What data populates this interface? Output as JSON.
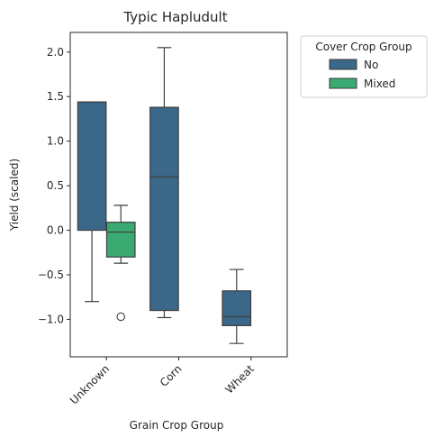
{
  "chart_data": {
    "type": "box",
    "title": "Typic Hapludult",
    "xlabel": "Grain Crop Group",
    "ylabel": "Yield (scaled)",
    "categories": [
      "Unknown",
      "Corn",
      "Wheat"
    ],
    "ylim": [
      -1.42,
      2.22
    ],
    "yticks": [
      "2.0",
      "1.5",
      "1.0",
      "0.5",
      "0.0",
      "−0.5",
      "−1.0"
    ],
    "ytick_values": [
      2.0,
      1.5,
      1.0,
      0.5,
      0.0,
      -0.5,
      -1.0
    ],
    "legend": {
      "title": "Cover Crop Group",
      "placement": "outside-top-right",
      "entries": [
        {
          "name": "No",
          "color": "#3b6788"
        },
        {
          "name": "Mixed",
          "color": "#3aaa72"
        }
      ]
    },
    "boxes": [
      {
        "category": "Unknown",
        "series": "No",
        "whisker_low": -0.8,
        "q1": 0.0,
        "median": 1.44,
        "q3": 1.44,
        "whisker_high": 1.44,
        "outliers": []
      },
      {
        "category": "Unknown",
        "series": "Mixed",
        "whisker_low": -0.37,
        "q1": -0.3,
        "median": -0.02,
        "q3": 0.09,
        "whisker_high": 0.28,
        "outliers": [
          -0.97
        ]
      },
      {
        "category": "Corn",
        "series": "No",
        "whisker_low": -0.98,
        "q1": -0.9,
        "median": 0.6,
        "q3": 1.38,
        "whisker_high": 2.05,
        "outliers": []
      },
      {
        "category": "Wheat",
        "series": "No",
        "whisker_low": -1.27,
        "q1": -1.07,
        "median": -0.97,
        "q3": -0.68,
        "whisker_high": -0.44,
        "outliers": []
      }
    ],
    "grid": false
  }
}
